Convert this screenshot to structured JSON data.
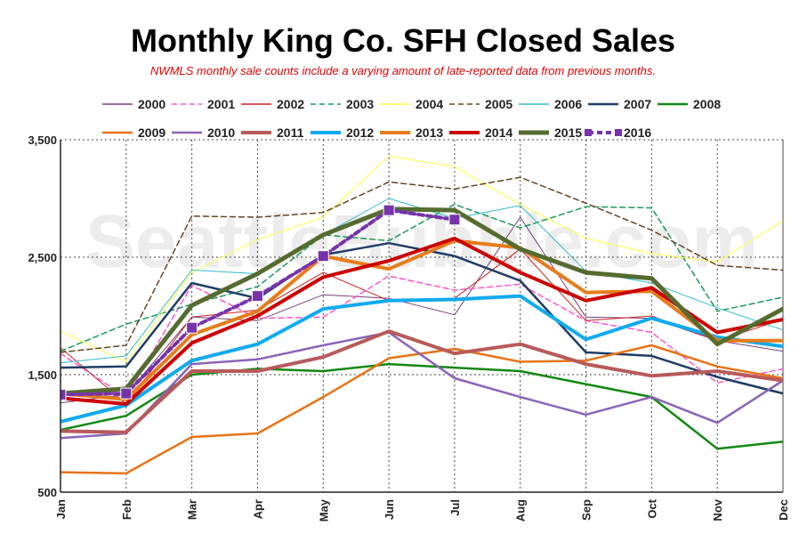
{
  "chart_data": {
    "type": "line",
    "title": "Monthly King Co. SFH Closed Sales",
    "subtitle": "NWMLS monthly sale counts include a varying amount of late-reported  data from previous months.",
    "watermark": "SeattleBubble.com",
    "categories": [
      "Jan",
      "Feb",
      "Mar",
      "Apr",
      "May",
      "Jun",
      "Jul",
      "Aug",
      "Sep",
      "Oct",
      "Nov",
      "Dec"
    ],
    "ylim": [
      500,
      3500
    ],
    "yticks": [
      "500",
      "1,500",
      "2,500",
      "3,500"
    ],
    "grid": true,
    "legend_position": "top",
    "series": [
      {
        "name": "2000",
        "color": "#7b3f7f",
        "width": 1,
        "dash": "",
        "values": [
          1260,
          1330,
          1990,
          1960,
          2180,
          2150,
          2010,
          2840,
          1990,
          1980,
          1790,
          1700
        ]
      },
      {
        "name": "2001",
        "color": "#ff55cc",
        "width": 1.5,
        "dash": "6,4",
        "values": [
          1680,
          1310,
          2260,
          1980,
          1990,
          2340,
          2220,
          2270,
          1960,
          1860,
          1430,
          1550
        ]
      },
      {
        "name": "2002",
        "color": "#cc2222",
        "width": 1,
        "dash": "",
        "values": [
          1730,
          1250,
          1990,
          2050,
          2370,
          2130,
          2150,
          2570,
          1960,
          2000,
          1790,
          1970
        ]
      },
      {
        "name": "2003",
        "color": "#1a9a5a",
        "width": 1.5,
        "dash": "6,4",
        "values": [
          1700,
          1930,
          2100,
          2250,
          2690,
          2640,
          2950,
          2750,
          2930,
          2920,
          2040,
          2160
        ]
      },
      {
        "name": "2004",
        "color": "#ffff44",
        "width": 1,
        "dash": "",
        "values": [
          1870,
          1610,
          2370,
          2650,
          2840,
          3360,
          3270,
          2950,
          2660,
          2530,
          2460,
          2810
        ]
      },
      {
        "name": "2005",
        "color": "#664422",
        "width": 1.5,
        "dash": "6,4",
        "values": [
          1690,
          1750,
          2850,
          2840,
          2880,
          3140,
          3080,
          3180,
          2960,
          2730,
          2430,
          2390
        ]
      },
      {
        "name": "2006",
        "color": "#33bbcc",
        "width": 1,
        "dash": "",
        "values": [
          1600,
          1660,
          2390,
          2360,
          2690,
          3000,
          2830,
          2940,
          2380,
          2280,
          2070,
          1880
        ]
      },
      {
        "name": "2007",
        "color": "#1f3d66",
        "width": 2.5,
        "dash": "",
        "values": [
          1560,
          1570,
          2280,
          2150,
          2520,
          2620,
          2510,
          2300,
          1690,
          1660,
          1480,
          1340
        ]
      },
      {
        "name": "2008",
        "color": "#118811",
        "width": 2.5,
        "dash": "",
        "values": [
          1030,
          1150,
          1500,
          1550,
          1530,
          1590,
          1560,
          1530,
          1420,
          1310,
          870,
          930
        ]
      },
      {
        "name": "2009",
        "color": "#e67316",
        "width": 2.5,
        "dash": "",
        "values": [
          670,
          660,
          970,
          1000,
          1310,
          1640,
          1720,
          1610,
          1620,
          1750,
          1570,
          1470
        ]
      },
      {
        "name": "2010",
        "color": "#8a64b8",
        "width": 2.5,
        "dash": "",
        "values": [
          960,
          1000,
          1590,
          1630,
          1750,
          1860,
          1470,
          1310,
          1160,
          1310,
          1090,
          1450
        ]
      },
      {
        "name": "2011",
        "color": "#b85a5a",
        "width": 4,
        "dash": "",
        "values": [
          1020,
          1010,
          1530,
          1530,
          1650,
          1870,
          1680,
          1760,
          1590,
          1490,
          1530,
          1450
        ]
      },
      {
        "name": "2012",
        "color": "#11aaee",
        "width": 4,
        "dash": "",
        "values": [
          1100,
          1240,
          1620,
          1760,
          2060,
          2130,
          2140,
          2170,
          1800,
          1980,
          1820,
          1740
        ]
      },
      {
        "name": "2013",
        "color": "#e67c1a",
        "width": 4,
        "dash": "",
        "values": [
          1340,
          1290,
          1840,
          2040,
          2510,
          2400,
          2640,
          2580,
          2200,
          2210,
          1790,
          1790
        ]
      },
      {
        "name": "2014",
        "color": "#cc0000",
        "width": 4,
        "dash": "",
        "values": [
          1300,
          1250,
          1770,
          2000,
          2330,
          2470,
          2660,
          2370,
          2130,
          2240,
          1860,
          1970
        ]
      },
      {
        "name": "2015",
        "color": "#556b2f",
        "width": 5,
        "dash": "",
        "values": [
          1340,
          1380,
          2090,
          2360,
          2690,
          2910,
          2900,
          2570,
          2370,
          2320,
          1760,
          2060
        ]
      },
      {
        "name": "2016",
        "color": "#7733aa",
        "width": 4,
        "dash": "6,4",
        "marker": true,
        "values": [
          1330,
          1340,
          1900,
          2170,
          2510,
          2900,
          2820,
          null,
          null,
          null,
          null,
          null
        ]
      }
    ]
  }
}
